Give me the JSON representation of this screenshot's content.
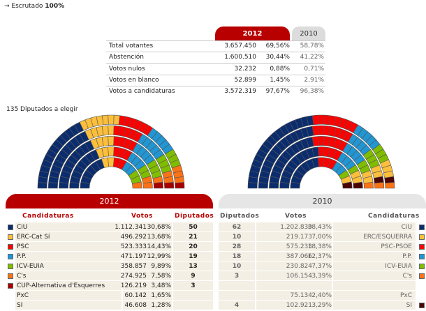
{
  "header": {
    "arrow": "→",
    "label": "Escrutado",
    "value": "100%"
  },
  "summary": {
    "tab_2012": "2012",
    "tab_2010": "2010",
    "rows": [
      {
        "label": "Total votantes",
        "votes": "3.657.450",
        "pct": "69,56%",
        "pct2010": "58,78%"
      },
      {
        "label": "Abstención",
        "votes": "1.600.510",
        "pct": "30,44%",
        "pct2010": "41,22%"
      },
      {
        "label": "Votos nulos",
        "votes": "32.232",
        "pct": "0,88%",
        "pct2010": "0,71%"
      },
      {
        "label": "Votos en blanco",
        "votes": "52.899",
        "pct": "1,45%",
        "pct2010": "2,91%"
      },
      {
        "label": "Votos a candidaturas",
        "votes": "3.572.319",
        "pct": "97,67%",
        "pct2010": "96,38%"
      }
    ]
  },
  "seats_label": "135 Diputados a elegir",
  "colors": {
    "CiU": "#0b2d6e",
    "ERC": "#fcbf3c",
    "PSC": "#ff0000",
    "PP": "#2196d3",
    "ICV": "#80bd00",
    "Cs": "#f97316",
    "CUP": "#a80000",
    "SI": "#4a0505"
  },
  "hemicycle_2012": [
    {
      "party": "CiU",
      "seats": 50
    },
    {
      "party": "ERC",
      "seats": 21
    },
    {
      "party": "PSC",
      "seats": 20
    },
    {
      "party": "PP",
      "seats": 19
    },
    {
      "party": "ICV",
      "seats": 13
    },
    {
      "party": "Cs",
      "seats": 9
    },
    {
      "party": "CUP",
      "seats": 3
    }
  ],
  "hemicycle_2010": [
    {
      "party": "CiU",
      "seats": 62
    },
    {
      "party": "PSC",
      "seats": 28
    },
    {
      "party": "PP",
      "seats": 18
    },
    {
      "party": "ICV",
      "seats": 10
    },
    {
      "party": "ERC",
      "seats": 10
    },
    {
      "party": "SI",
      "seats": 4
    },
    {
      "party": "Cs",
      "seats": 3
    }
  ],
  "results_2012": {
    "title": "2012",
    "col_party": "Candidaturas",
    "col_votes": "Votos",
    "col_seats": "Diputados",
    "rows": [
      {
        "party": "CiU",
        "color_key": "CiU",
        "votes": "1.112.341",
        "pct": "30,68%",
        "seats": "50"
      },
      {
        "party": "ERC-Cat Sí",
        "color_key": "ERC",
        "votes": "496.292",
        "pct": "13,68%",
        "seats": "21"
      },
      {
        "party": "PSC",
        "color_key": "PSC",
        "votes": "523.333",
        "pct": "14,43%",
        "seats": "20"
      },
      {
        "party": "P.P.",
        "color_key": "PP",
        "votes": "471.197",
        "pct": "12,99%",
        "seats": "19"
      },
      {
        "party": "ICV-EUiA",
        "color_key": "ICV",
        "votes": "358.857",
        "pct": "9,89%",
        "seats": "13"
      },
      {
        "party": "C's",
        "color_key": "Cs",
        "votes": "274.925",
        "pct": "7,58%",
        "seats": "9"
      },
      {
        "party": "CUP-Alternativa d'Esquerres",
        "color_key": "CUP",
        "votes": "126.219",
        "pct": "3,48%",
        "seats": "3"
      },
      {
        "party": "PxC",
        "color_key": "",
        "votes": "60.142",
        "pct": "1,65%",
        "seats": ""
      },
      {
        "party": "SI",
        "color_key": "",
        "votes": "46.608",
        "pct": "1,28%",
        "seats": ""
      }
    ]
  },
  "results_2010": {
    "title": "2010",
    "col_seats": "Diputados",
    "col_votes": "Votos",
    "col_party": "Candidaturas",
    "rows": [
      {
        "party": "CiU",
        "color_key": "CiU",
        "votes": "1.202.830",
        "pct": "38,43%",
        "seats": "62"
      },
      {
        "party": "ERC/ESQUERRA",
        "color_key": "ERC",
        "votes": "219.173",
        "pct": "7,00%",
        "seats": "10"
      },
      {
        "party": "PSC-PSOE",
        "color_key": "PSC",
        "votes": "575.233",
        "pct": "18,38%",
        "seats": "28"
      },
      {
        "party": "P.P.",
        "color_key": "PP",
        "votes": "387.066",
        "pct": "12,37%",
        "seats": "18"
      },
      {
        "party": "ICV-EUiA",
        "color_key": "ICV",
        "votes": "230.824",
        "pct": "7,37%",
        "seats": "10"
      },
      {
        "party": "C's",
        "color_key": "Cs",
        "votes": "106.154",
        "pct": "3,39%",
        "seats": "3"
      },
      {
        "party": "",
        "color_key": "",
        "votes": "",
        "pct": "",
        "seats": ""
      },
      {
        "party": "PxC",
        "color_key": "",
        "votes": "75.134",
        "pct": "2,40%",
        "seats": ""
      },
      {
        "party": "SI",
        "color_key": "SI",
        "votes": "102.921",
        "pct": "3,29%",
        "seats": "4"
      }
    ]
  }
}
